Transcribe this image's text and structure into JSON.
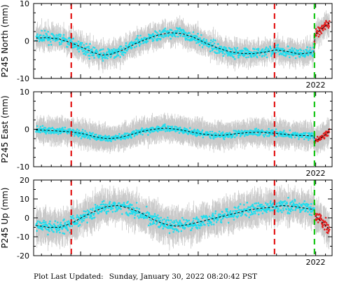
{
  "footer": {
    "label": "Plot Last Updated:",
    "timestamp": "Sunday, January 30, 2022 08:20:42 PST"
  },
  "chart_data": [
    {
      "type": "scatter",
      "ylabel": "P245 North (mm)",
      "xlabel": "",
      "x_tick_label": "2022",
      "xlim": [
        2019.6,
        2022.14
      ],
      "ylim": [
        -10,
        10
      ],
      "yticks": [
        -10,
        0,
        10
      ],
      "grid": false,
      "offsets": [
        {
          "x": 2019.92,
          "color": "#e00000",
          "style": "dashed"
        },
        {
          "x": 2021.65,
          "color": "#e00000",
          "style": "dashed"
        },
        {
          "x": 2021.99,
          "color": "#00c000",
          "style": "dashed"
        }
      ],
      "model": {
        "color": "#000000",
        "style": "dashed",
        "x": [
          2019.62,
          2019.72,
          2019.82,
          2019.92,
          2020.02,
          2020.1,
          2020.18,
          2020.26,
          2020.36,
          2020.46,
          2020.56,
          2020.66,
          2020.76,
          2020.86,
          2020.96,
          2021.06,
          2021.16,
          2021.26,
          2021.36,
          2021.46,
          2021.56,
          2021.66,
          2021.76,
          2021.86,
          2021.94,
          2021.985,
          2021.995,
          2022.04,
          2022.1,
          2022.12
        ],
        "y": [
          0.8,
          0.9,
          0.5,
          -0.5,
          -1.8,
          -3.0,
          -3.8,
          -3.5,
          -2.4,
          -0.8,
          0.5,
          1.6,
          2.2,
          2.0,
          1.0,
          -0.5,
          -1.8,
          -2.8,
          -3.3,
          -3.4,
          -3.0,
          -2.4,
          -2.8,
          -3.5,
          -3.2,
          -3.0,
          1.7,
          3.0,
          4.4,
          5.0
        ]
      },
      "series": [
        {
          "color": "#22dded",
          "x_range": [
            2019.62,
            2021.99
          ],
          "noise_mm": 1.4,
          "error_mm": 2.5
        },
        {
          "color": "#e02020",
          "x_range": [
            2021.99,
            2022.12
          ],
          "noise_mm": 1.4,
          "error_mm": 2.5
        }
      ]
    },
    {
      "type": "scatter",
      "ylabel": "P245 East (mm)",
      "xlabel": "",
      "x_tick_label": "2022",
      "xlim": [
        2019.6,
        2022.14
      ],
      "ylim": [
        -10,
        10
      ],
      "yticks": [
        -10,
        0,
        10
      ],
      "grid": false,
      "offsets": [
        {
          "x": 2019.92,
          "color": "#e00000",
          "style": "dashed"
        },
        {
          "x": 2021.65,
          "color": "#e00000",
          "style": "dashed"
        },
        {
          "x": 2021.99,
          "color": "#00c000",
          "style": "dashed"
        }
      ],
      "model": {
        "color": "#000000",
        "style": "dashed",
        "x": [
          2019.62,
          2019.72,
          2019.82,
          2019.92,
          2020.02,
          2020.12,
          2020.22,
          2020.32,
          2020.42,
          2020.52,
          2020.62,
          2020.72,
          2020.82,
          2020.92,
          2021.02,
          2021.12,
          2021.22,
          2021.32,
          2021.42,
          2021.52,
          2021.62,
          2021.72,
          2021.82,
          2021.92,
          2021.985,
          2021.995,
          2022.05,
          2022.1,
          2022.12
        ],
        "y": [
          -0.2,
          -0.3,
          -0.5,
          -0.7,
          -1.2,
          -2.0,
          -2.5,
          -2.3,
          -1.5,
          -0.6,
          0.0,
          0.3,
          0.0,
          -0.6,
          -1.2,
          -1.6,
          -1.6,
          -1.2,
          -0.9,
          -0.8,
          -1.0,
          -1.3,
          -1.6,
          -1.7,
          -1.8,
          -3.2,
          -2.2,
          -1.0,
          -0.6
        ]
      },
      "series": [
        {
          "color": "#22dded",
          "x_range": [
            2019.62,
            2021.99
          ],
          "noise_mm": 0.9,
          "error_mm": 2.8
        },
        {
          "color": "#e02020",
          "x_range": [
            2021.99,
            2022.12
          ],
          "noise_mm": 0.9,
          "error_mm": 2.8
        }
      ]
    },
    {
      "type": "scatter",
      "ylabel": "P245 Up (mm)",
      "xlabel": "",
      "x_tick_label": "2022",
      "xlim": [
        2019.6,
        2022.14
      ],
      "ylim": [
        -20,
        20
      ],
      "yticks": [
        -20,
        -10,
        0,
        10,
        20
      ],
      "grid": false,
      "offsets": [
        {
          "x": 2019.92,
          "color": "#e00000",
          "style": "dashed"
        },
        {
          "x": 2021.65,
          "color": "#e00000",
          "style": "dashed"
        },
        {
          "x": 2021.99,
          "color": "#00c000",
          "style": "dashed"
        }
      ],
      "model": {
        "color": "#000000",
        "style": "dashed",
        "x": [
          2019.62,
          2019.72,
          2019.82,
          2019.92,
          2020.02,
          2020.12,
          2020.22,
          2020.32,
          2020.42,
          2020.52,
          2020.62,
          2020.72,
          2020.82,
          2020.92,
          2021.02,
          2021.12,
          2021.22,
          2021.32,
          2021.42,
          2021.52,
          2021.62,
          2021.72,
          2021.82,
          2021.92,
          2021.985,
          2021.995,
          2022.05,
          2022.1,
          2022.12
        ],
        "y": [
          -4.0,
          -5.0,
          -5.0,
          -3.0,
          0.5,
          3.5,
          6.0,
          6.5,
          5.0,
          2.5,
          -1.0,
          -3.5,
          -4.5,
          -3.5,
          -2.0,
          -0.5,
          1.0,
          2.5,
          4.0,
          5.0,
          5.5,
          6.5,
          6.0,
          5.0,
          4.5,
          1.0,
          -2.0,
          -5.0,
          -6.5
        ]
      },
      "series": [
        {
          "color": "#22dded",
          "x_range": [
            2019.62,
            2021.99
          ],
          "noise_mm": 3.5,
          "error_mm": 7.0
        },
        {
          "color": "#e02020",
          "x_range": [
            2021.99,
            2022.12
          ],
          "noise_mm": 3.0,
          "error_mm": 7.0
        }
      ]
    }
  ]
}
